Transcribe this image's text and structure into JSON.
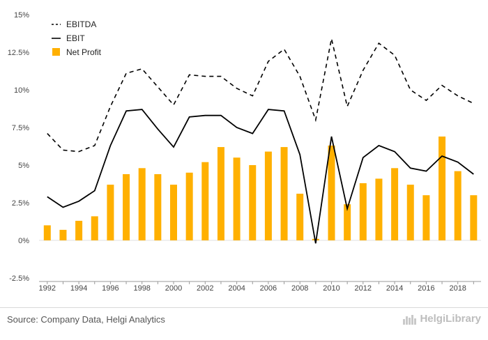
{
  "chart_data": {
    "type": "bar+line",
    "x": [
      1992,
      1993,
      1994,
      1995,
      1996,
      1997,
      1998,
      1999,
      2000,
      2001,
      2002,
      2003,
      2004,
      2005,
      2006,
      2007,
      2008,
      2009,
      2010,
      2011,
      2012,
      2013,
      2014,
      2015,
      2016,
      2017,
      2018,
      2019
    ],
    "x_tick_labels": [
      "1992",
      "1994",
      "1996",
      "1998",
      "2000",
      "2002",
      "2004",
      "2006",
      "2008",
      "2010",
      "2012",
      "2014",
      "2016",
      "2018"
    ],
    "y_tick_labels": [
      "-2.5%",
      "0%",
      "2.5%",
      "5%",
      "7.5%",
      "10%",
      "12.5%",
      "15%"
    ],
    "ylim": [
      -2.5,
      15
    ],
    "series": [
      {
        "name": "EBITDA",
        "kind": "line",
        "style": "dashed",
        "color": "#000000",
        "values": [
          7.1,
          6.0,
          5.9,
          6.3,
          8.9,
          11.1,
          11.4,
          10.2,
          9.0,
          11.0,
          10.9,
          10.9,
          10.1,
          9.6,
          11.9,
          12.7,
          10.9,
          8.0,
          13.4,
          8.9,
          11.3,
          13.1,
          12.3,
          10.0,
          9.3,
          10.3,
          9.6,
          9.1
        ]
      },
      {
        "name": "EBIT",
        "kind": "line",
        "style": "solid",
        "color": "#000000",
        "values": [
          2.9,
          2.2,
          2.6,
          3.3,
          6.3,
          8.6,
          8.7,
          7.4,
          6.2,
          8.2,
          8.3,
          8.3,
          7.5,
          7.1,
          8.7,
          8.6,
          5.7,
          -0.2,
          6.9,
          2.1,
          5.5,
          6.3,
          5.9,
          4.8,
          4.6,
          5.6,
          5.2,
          4.4
        ]
      },
      {
        "name": "Net Profit",
        "kind": "bar",
        "color": "#FFB000",
        "values": [
          1.0,
          0.7,
          1.3,
          1.6,
          3.7,
          4.4,
          4.8,
          4.4,
          3.7,
          4.5,
          5.2,
          6.2,
          5.5,
          5.0,
          5.9,
          6.2,
          3.1,
          0.1,
          6.3,
          2.4,
          3.8,
          4.1,
          4.8,
          3.7,
          3.0,
          6.9,
          4.6,
          3.0
        ]
      }
    ],
    "legend_position": "top-left",
    "grid": false
  },
  "footer": {
    "source": "Source: Company Data, Helgi Analytics",
    "brand": "HelgiLibrary"
  }
}
